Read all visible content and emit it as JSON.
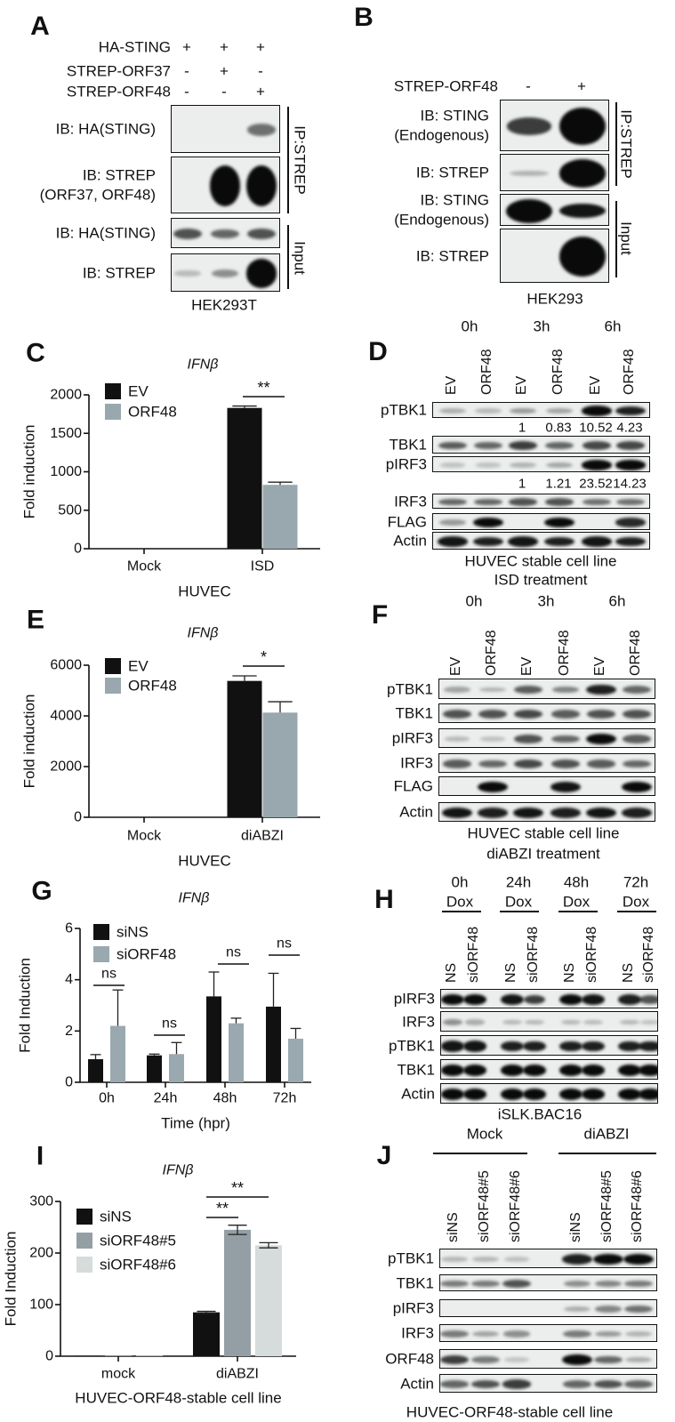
{
  "panels": {
    "A": {
      "label": "A",
      "conditions": [
        {
          "name": "HA-STING",
          "signs": [
            "+",
            "+",
            "+"
          ]
        },
        {
          "name": "STREP-ORF37",
          "signs": [
            "-",
            "+",
            "-"
          ]
        },
        {
          "name": "STREP-ORF48",
          "signs": [
            "-",
            "-",
            "+"
          ]
        }
      ],
      "rows": [
        {
          "label": "IB: HA(STING)",
          "label2": "",
          "bands": [
            0,
            0,
            0.45
          ]
        },
        {
          "label": "IB: STREP",
          "label2": "(ORF37, ORF48)",
          "bands": [
            0,
            0.95,
            1
          ]
        },
        {
          "label": "IB: HA(STING)",
          "label2": "",
          "bands": [
            0.6,
            0.5,
            0.6
          ]
        },
        {
          "label": "IB: STREP",
          "label2": "",
          "bands": [
            0.08,
            0.3,
            1
          ]
        }
      ],
      "groups": [
        "IP:STREP",
        "Input"
      ],
      "cell_line": "HEK293T"
    },
    "B": {
      "label": "B",
      "conditions": [
        {
          "name": "STREP-ORF48",
          "signs": [
            "-",
            "+"
          ]
        }
      ],
      "rows": [
        {
          "label": "IB: STING",
          "label2": "(Endogenous)",
          "bands": [
            0.7,
            1
          ]
        },
        {
          "label": "IB: STREP",
          "label2": "",
          "bands": [
            0.12,
            1
          ]
        },
        {
          "label": "IB: STING",
          "label2": "(Endogenous)",
          "bands": [
            0.95,
            0.9
          ]
        },
        {
          "label": "IB: STREP",
          "label2": "",
          "bands": [
            0,
            1
          ]
        }
      ],
      "groups": [
        "IP:STREP",
        "Input"
      ],
      "cell_line": "HEK293"
    },
    "D": {
      "label": "D",
      "timepoints": [
        "0h",
        "3h",
        "6h"
      ],
      "lanes": [
        "EV",
        "ORF48",
        "EV",
        "ORF48",
        "EV",
        "ORF48"
      ],
      "rows": [
        {
          "label": "pTBK1",
          "bands": [
            0.15,
            0.1,
            0.25,
            0.2,
            1,
            0.85
          ]
        },
        {
          "label": "TBK1",
          "bands": [
            0.55,
            0.5,
            0.7,
            0.5,
            0.65,
            0.65
          ]
        },
        {
          "label": "pIRF3",
          "bands": [
            0.05,
            0.05,
            0.12,
            0.18,
            1,
            1
          ]
        },
        {
          "label": "IRF3",
          "bands": [
            0.5,
            0.5,
            0.6,
            0.6,
            0.45,
            0.45
          ]
        },
        {
          "label": "FLAG",
          "bands": [
            0.25,
            0.95,
            0,
            0.95,
            0,
            0.8
          ]
        },
        {
          "label": "Actin",
          "bands": [
            0.9,
            0.85,
            0.9,
            0.85,
            0.9,
            0.85
          ]
        }
      ],
      "quant_ptbk1": [
        "1",
        "0.83",
        "10.52",
        "4.23"
      ],
      "quant_pirf3": [
        "1",
        "1.21",
        "23.52",
        "14.23"
      ],
      "caption1": "HUVEC stable cell line",
      "caption2": "ISD treatment"
    },
    "F": {
      "label": "F",
      "timepoints": [
        "0h",
        "3h",
        "6h"
      ],
      "lanes": [
        "EV",
        "ORF48",
        "EV",
        "ORF48",
        "EV",
        "ORF48"
      ],
      "rows": [
        {
          "label": "pTBK1",
          "bands": [
            0.2,
            0.12,
            0.55,
            0.35,
            0.85,
            0.5
          ]
        },
        {
          "label": "TBK1",
          "bands": [
            0.6,
            0.6,
            0.65,
            0.55,
            0.6,
            0.6
          ]
        },
        {
          "label": "pIRF3",
          "bands": [
            0.08,
            0.05,
            0.6,
            0.5,
            0.95,
            0.55
          ]
        },
        {
          "label": "IRF3",
          "bands": [
            0.55,
            0.5,
            0.65,
            0.6,
            0.55,
            0.5
          ]
        },
        {
          "label": "FLAG",
          "bands": [
            0,
            0.95,
            0,
            0.9,
            0,
            1
          ]
        },
        {
          "label": "Actin",
          "bands": [
            0.9,
            0.85,
            0.9,
            0.85,
            0.9,
            0.85
          ]
        }
      ],
      "caption1": "HUVEC stable cell line",
      "caption2": "diABZI treatment"
    },
    "H": {
      "label": "H",
      "timepoints": [
        "0h",
        "24h",
        "48h",
        "72h"
      ],
      "timepoint_sub": "Dox",
      "lanes": [
        "NS",
        "siORF48",
        "NS",
        "siORF48",
        "NS",
        "siORF48",
        "NS",
        "siORF48"
      ],
      "rows": [
        {
          "label": "pIRF3",
          "bands": [
            0.95,
            0.95,
            0.9,
            0.7,
            0.95,
            0.9,
            0.85,
            0.6
          ]
        },
        {
          "label": "IRF3",
          "bands": [
            0.3,
            0.15,
            0.1,
            0.1,
            0.1,
            0.08,
            0.1,
            0.05
          ]
        },
        {
          "label": "pTBK1",
          "bands": [
            0.9,
            0.9,
            0.85,
            0.85,
            0.85,
            0.85,
            0.85,
            0.85
          ]
        },
        {
          "label": "TBK1",
          "bands": [
            0.95,
            0.95,
            0.95,
            0.95,
            0.95,
            0.95,
            0.95,
            0.95
          ]
        },
        {
          "label": "Actin",
          "bands": [
            0.95,
            0.95,
            0.95,
            0.95,
            0.95,
            0.95,
            0.95,
            0.95
          ]
        }
      ],
      "caption": "iSLK.BAC16"
    },
    "J": {
      "label": "J",
      "treatments": [
        "Mock",
        "diABZI"
      ],
      "lanes": [
        "siNS",
        "siORF48#5",
        "siORF48#6",
        "siNS",
        "siORF48#5",
        "siORF48#6"
      ],
      "rows": [
        {
          "label": "pTBK1",
          "bands": [
            0.1,
            0.1,
            0.06,
            0.85,
            1,
            1
          ]
        },
        {
          "label": "TBK1",
          "bands": [
            0.4,
            0.4,
            0.6,
            0.3,
            0.35,
            0.4
          ]
        },
        {
          "label": "pIRF3",
          "bands": [
            0,
            0,
            0,
            0.15,
            0.35,
            0.45
          ]
        },
        {
          "label": "IRF3",
          "bands": [
            0.4,
            0.2,
            0.3,
            0.4,
            0.25,
            0.12
          ]
        },
        {
          "label": "ORF48",
          "bands": [
            0.7,
            0.4,
            0.04,
            1,
            0.5,
            0.15
          ]
        },
        {
          "label": "Actin",
          "bands": [
            0.5,
            0.6,
            0.7,
            0.5,
            0.6,
            0.5
          ]
        }
      ],
      "caption": "HUVEC-ORF48-stable   cell line"
    }
  },
  "chart_data": [
    {
      "panel": "C",
      "type": "bar",
      "title": "IFNβ",
      "categories": [
        "Mock",
        "ISD"
      ],
      "xlabel": "HUVEC",
      "ylabel": "Fold induction",
      "ylim": [
        0,
        2000
      ],
      "yticks": [
        "0",
        "500",
        "1000",
        "1500",
        "2000"
      ],
      "legend": "top-left",
      "grid": false,
      "series": [
        {
          "name": "EV",
          "color": "#111111",
          "values": [
            0,
            1830
          ],
          "errors": [
            0,
            25
          ]
        },
        {
          "name": "ORF48",
          "color": "#98a8ae",
          "values": [
            0,
            830
          ],
          "errors": [
            0,
            35
          ]
        }
      ],
      "significance": [
        {
          "label": "**",
          "category": "ISD"
        }
      ]
    },
    {
      "panel": "E",
      "type": "bar",
      "title": "IFNβ",
      "categories": [
        "Mock",
        "diABZI"
      ],
      "xlabel": "HUVEC",
      "ylabel": "Fold induction",
      "ylim": [
        0,
        6000
      ],
      "yticks": [
        "0",
        "2000",
        "4000",
        "6000"
      ],
      "legend": "top-left",
      "grid": false,
      "series": [
        {
          "name": "EV",
          "color": "#111111",
          "values": [
            0,
            5380
          ],
          "errors": [
            0,
            200
          ]
        },
        {
          "name": "ORF48",
          "color": "#98a8ae",
          "values": [
            0,
            4130
          ],
          "errors": [
            0,
            430
          ]
        }
      ],
      "significance": [
        {
          "label": "*",
          "category": "diABZI"
        }
      ]
    },
    {
      "panel": "G",
      "type": "bar",
      "title": "IFNβ",
      "categories": [
        "0h",
        "24h",
        "48h",
        "72h"
      ],
      "xlabel": "Time (hpr)",
      "ylabel": "Fold Induction",
      "ylim": [
        0,
        6
      ],
      "yticks": [
        "0",
        "2",
        "4",
        "6"
      ],
      "legend": "top-left",
      "grid": false,
      "series": [
        {
          "name": "siNS",
          "color": "#111111",
          "values": [
            0.9,
            1.05,
            3.35,
            2.95
          ],
          "errors": [
            0.18,
            0.05,
            0.95,
            1.3
          ]
        },
        {
          "name": "siORF48",
          "color": "#9aa9b0",
          "values": [
            2.2,
            1.1,
            2.3,
            1.7
          ],
          "errors": [
            1.4,
            0.45,
            0.2,
            0.4
          ]
        }
      ],
      "significance": [
        {
          "label": "ns",
          "category": "0h"
        },
        {
          "label": "ns",
          "category": "24h"
        },
        {
          "label": "ns",
          "category": "48h"
        },
        {
          "label": "ns",
          "category": "72h"
        }
      ]
    },
    {
      "panel": "I",
      "type": "bar",
      "title": "IFNβ",
      "categories": [
        "mock",
        "diABZI"
      ],
      "xlabel": "HUVEC-ORF48-stable cell line",
      "ylabel": "Fold Induction",
      "ylim": [
        0,
        300
      ],
      "yticks": [
        "0",
        "100",
        "200",
        "300"
      ],
      "legend": "top-left",
      "grid": false,
      "series": [
        {
          "name": "siNS",
          "color": "#111111",
          "values": [
            1,
            85
          ],
          "errors": [
            0,
            2
          ]
        },
        {
          "name": "siORF48#5",
          "color": "#949fa5",
          "values": [
            1,
            245
          ],
          "errors": [
            0,
            9
          ]
        },
        {
          "name": "siORF48#6",
          "color": "#d5dcdb",
          "values": [
            1,
            215
          ],
          "errors": [
            0,
            5
          ]
        }
      ],
      "significance": [
        {
          "label": "**",
          "category": "diABZI",
          "compare": "siNS vs siORF48#5"
        },
        {
          "label": "**",
          "category": "diABZI",
          "compare": "siNS vs siORF48#6"
        }
      ]
    }
  ]
}
